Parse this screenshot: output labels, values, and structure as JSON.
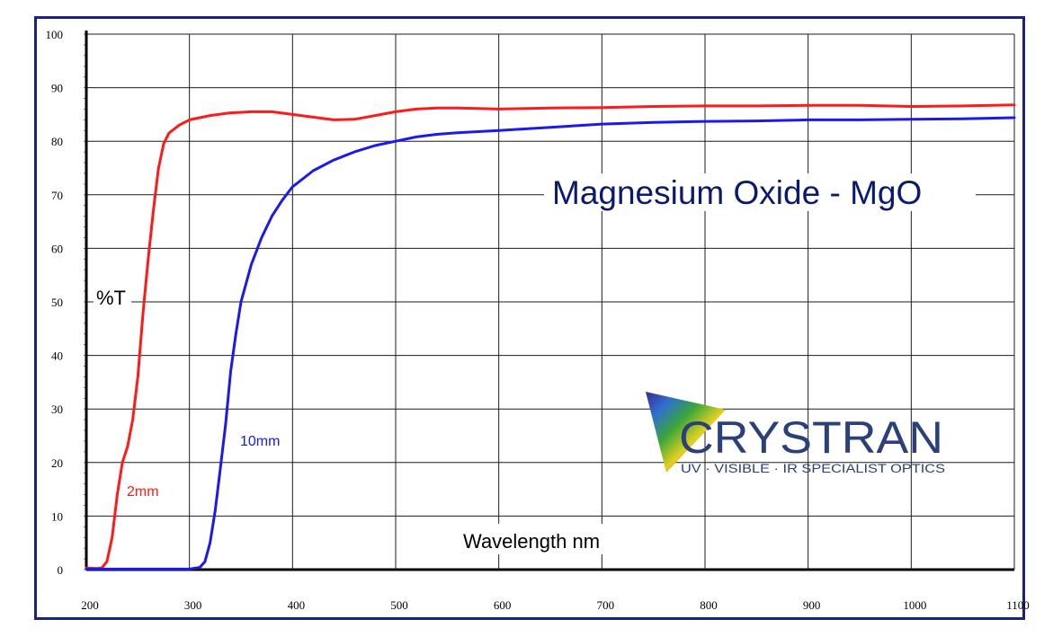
{
  "chart_data": {
    "type": "line",
    "title": "Magnesium Oxide - MgO",
    "xlabel": "Wavelength nm",
    "ylabel": "%T",
    "xlim": [
      200,
      1100
    ],
    "ylim": [
      0,
      100
    ],
    "x_ticks": [
      200,
      300,
      400,
      500,
      600,
      700,
      800,
      900,
      1000,
      1100
    ],
    "y_ticks": [
      0,
      10,
      20,
      30,
      40,
      50,
      60,
      70,
      80,
      90,
      100
    ],
    "grid": true,
    "series": [
      {
        "name": "2mm",
        "color": "#ff1a1a",
        "points": [
          [
            200,
            0.3
          ],
          [
            210,
            0.2
          ],
          [
            215,
            0.3
          ],
          [
            220,
            1.5
          ],
          [
            225,
            6
          ],
          [
            230,
            14
          ],
          [
            235,
            20
          ],
          [
            240,
            23
          ],
          [
            245,
            28
          ],
          [
            250,
            36
          ],
          [
            255,
            48
          ],
          [
            260,
            58
          ],
          [
            265,
            67
          ],
          [
            270,
            75
          ],
          [
            275,
            79.5
          ],
          [
            280,
            81.5
          ],
          [
            290,
            83
          ],
          [
            300,
            84
          ],
          [
            320,
            84.8
          ],
          [
            340,
            85.3
          ],
          [
            360,
            85.5
          ],
          [
            380,
            85.5
          ],
          [
            400,
            85
          ],
          [
            420,
            84.5
          ],
          [
            440,
            84
          ],
          [
            460,
            84.1
          ],
          [
            480,
            84.8
          ],
          [
            500,
            85.5
          ],
          [
            520,
            86
          ],
          [
            540,
            86.2
          ],
          [
            560,
            86.2
          ],
          [
            580,
            86.1
          ],
          [
            600,
            86
          ],
          [
            650,
            86.2
          ],
          [
            700,
            86.3
          ],
          [
            750,
            86.5
          ],
          [
            800,
            86.6
          ],
          [
            850,
            86.6
          ],
          [
            900,
            86.7
          ],
          [
            950,
            86.7
          ],
          [
            1000,
            86.5
          ],
          [
            1050,
            86.6
          ],
          [
            1100,
            86.8
          ]
        ]
      },
      {
        "name": "10mm",
        "color": "#1a1aee",
        "points": [
          [
            200,
            0.1
          ],
          [
            250,
            0.1
          ],
          [
            300,
            0.1
          ],
          [
            310,
            0.4
          ],
          [
            315,
            1.5
          ],
          [
            320,
            5
          ],
          [
            325,
            11
          ],
          [
            330,
            19
          ],
          [
            335,
            27
          ],
          [
            340,
            37
          ],
          [
            345,
            44
          ],
          [
            350,
            50
          ],
          [
            360,
            57
          ],
          [
            370,
            62
          ],
          [
            380,
            66
          ],
          [
            390,
            69
          ],
          [
            400,
            71.5
          ],
          [
            420,
            74.5
          ],
          [
            440,
            76.5
          ],
          [
            460,
            78
          ],
          [
            480,
            79.2
          ],
          [
            500,
            80
          ],
          [
            520,
            80.8
          ],
          [
            540,
            81.3
          ],
          [
            560,
            81.6
          ],
          [
            580,
            81.8
          ],
          [
            600,
            82
          ],
          [
            650,
            82.6
          ],
          [
            700,
            83.2
          ],
          [
            750,
            83.5
          ],
          [
            800,
            83.7
          ],
          [
            850,
            83.8
          ],
          [
            900,
            84
          ],
          [
            950,
            84
          ],
          [
            1000,
            84.1
          ],
          [
            1050,
            84.2
          ],
          [
            1100,
            84.4
          ]
        ]
      }
    ],
    "series_labels": [
      {
        "text": "2mm",
        "color": "#ff1a1a"
      },
      {
        "text": "10mm",
        "color": "#1a1aee"
      }
    ]
  },
  "logo": {
    "brand": "CRYSTRAN",
    "tagline": "UV · VISIBLE · IR SPECIALIST OPTICS"
  }
}
